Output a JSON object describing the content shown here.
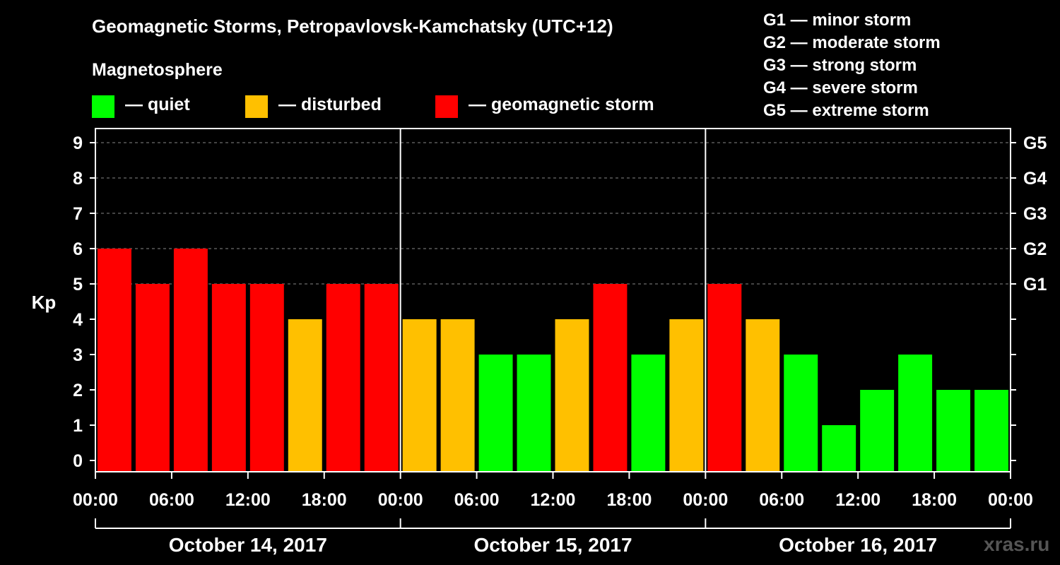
{
  "title": "Geomagnetic Storms, Petropavlovsk-Kamchatsky (UTC+12)",
  "magnetosphere_label": "Magnetosphere",
  "legend": [
    {
      "label": "— quiet",
      "color": "#00ff00"
    },
    {
      "label": "— disturbed",
      "color": "#ffc000"
    },
    {
      "label": "— geomagnetic storm",
      "color": "#ff0000"
    }
  ],
  "g_scale": [
    "G1 — minor storm",
    "G2 — moderate storm",
    "G3 — strong storm",
    "G4 — severe storm",
    "G5 — extreme storm"
  ],
  "watermark": "xras.ru",
  "chart_data": {
    "type": "bar",
    "ylabel": "Kp",
    "ylim": [
      0,
      9
    ],
    "y_ticks": [
      "0",
      "1",
      "2",
      "3",
      "4",
      "5",
      "6",
      "7",
      "8",
      "9"
    ],
    "right_ticks": [
      {
        "kp": 5,
        "label": "G1"
      },
      {
        "kp": 6,
        "label": "G2"
      },
      {
        "kp": 7,
        "label": "G3"
      },
      {
        "kp": 8,
        "label": "G4"
      },
      {
        "kp": 9,
        "label": "G5"
      }
    ],
    "x_tick_labels": [
      "00:00",
      "06:00",
      "12:00",
      "18:00",
      "00:00",
      "06:00",
      "12:00",
      "18:00",
      "00:00",
      "06:00",
      "12:00",
      "18:00",
      "00:00"
    ],
    "days": [
      "October 14, 2017",
      "October 15, 2017",
      "October 16, 2017"
    ],
    "interval_hours": 3,
    "values": [
      6,
      5,
      6,
      5,
      5,
      4,
      5,
      5,
      4,
      4,
      3,
      3,
      4,
      5,
      3,
      4,
      5,
      4,
      3,
      1,
      2,
      3,
      2,
      2
    ],
    "colors": {
      "quiet": "#00ff00",
      "disturbed": "#ffc000",
      "storm": "#ff0000"
    },
    "grid": "dashed horizontal at 5-9"
  }
}
